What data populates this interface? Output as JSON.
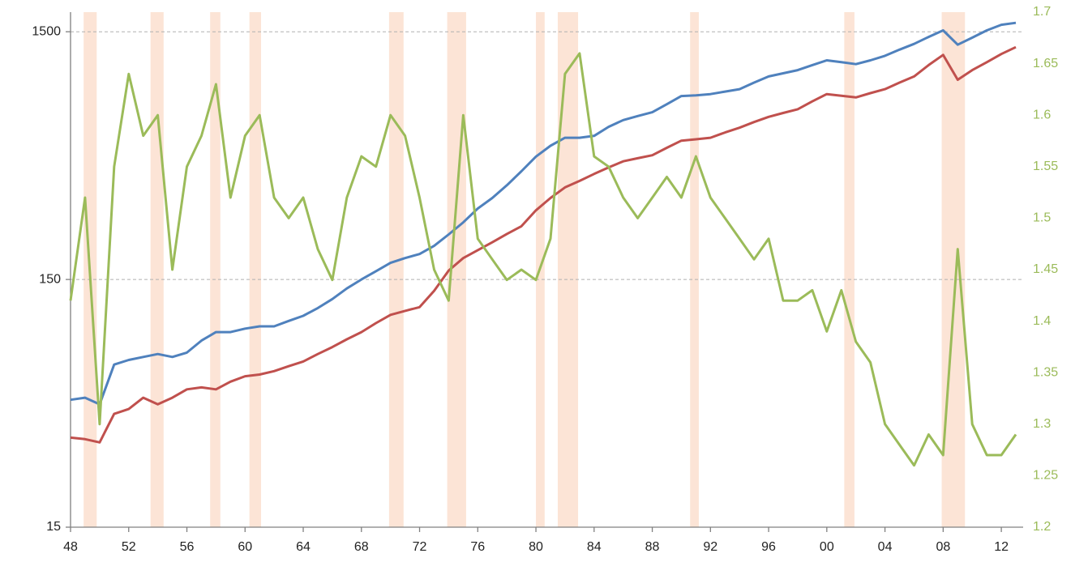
{
  "chart_data": {
    "type": "line",
    "x": [
      1948,
      1949,
      1950,
      1951,
      1952,
      1953,
      1954,
      1955,
      1956,
      1957,
      1958,
      1959,
      1960,
      1961,
      1962,
      1963,
      1964,
      1965,
      1966,
      1967,
      1968,
      1969,
      1970,
      1971,
      1972,
      1973,
      1974,
      1975,
      1976,
      1977,
      1978,
      1979,
      1980,
      1981,
      1982,
      1983,
      1984,
      1985,
      1986,
      1987,
      1988,
      1989,
      1990,
      1991,
      1992,
      1993,
      1994,
      1995,
      1996,
      1997,
      1998,
      1999,
      2000,
      2001,
      2002,
      2003,
      2004,
      2005,
      2006,
      2007,
      2008,
      2009,
      2010,
      2011,
      2012,
      2013
    ],
    "series": [
      {
        "color": "#4f81bd",
        "values": [
          49,
          50,
          47,
          68,
          71,
          73,
          75,
          73,
          76,
          85,
          92,
          92,
          95,
          97,
          97,
          102,
          107,
          115,
          125,
          138,
          150,
          162,
          175,
          183,
          190,
          205,
          228,
          255,
          290,
          320,
          360,
          410,
          470,
          520,
          560,
          560,
          570,
          620,
          660,
          685,
          710,
          765,
          825,
          830,
          840,
          860,
          880,
          935,
          990,
          1020,
          1050,
          1100,
          1150,
          1130,
          1110,
          1150,
          1200,
          1270,
          1340,
          1430,
          1520,
          1330,
          1420,
          1520,
          1600,
          1630
        ]
      },
      {
        "color": "#c0504d",
        "values": [
          34.5,
          34,
          33,
          43,
          45,
          50,
          47,
          50,
          54,
          55,
          54,
          58,
          61,
          62,
          64,
          67,
          70,
          75,
          80,
          86,
          92,
          100,
          108,
          112,
          116,
          135,
          163,
          183,
          197,
          212,
          229,
          246,
          285,
          320,
          353,
          375,
          400,
          425,
          450,
          463,
          476,
          510,
          545,
          552,
          560,
          588,
          615,
          648,
          680,
          705,
          730,
          785,
          840,
          828,
          815,
          848,
          880,
          935,
          990,
          1100,
          1210,
          960,
          1050,
          1130,
          1220,
          1300
        ]
      },
      {
        "color": "#9bbb59",
        "axis": "y2",
        "values": [
          1.42,
          1.52,
          1.3,
          1.55,
          1.64,
          1.58,
          1.6,
          1.45,
          1.55,
          1.58,
          1.63,
          1.52,
          1.58,
          1.6,
          1.52,
          1.5,
          1.52,
          1.47,
          1.44,
          1.52,
          1.56,
          1.55,
          1.6,
          1.58,
          1.52,
          1.45,
          1.42,
          1.6,
          1.48,
          1.46,
          1.44,
          1.45,
          1.44,
          1.48,
          1.64,
          1.66,
          1.56,
          1.55,
          1.52,
          1.5,
          1.52,
          1.54,
          1.52,
          1.56,
          1.52,
          1.5,
          1.48,
          1.46,
          1.48,
          1.42,
          1.42,
          1.43,
          1.39,
          1.43,
          1.38,
          1.36,
          1.3,
          1.28,
          1.26,
          1.29,
          1.27,
          1.47,
          1.3,
          1.27,
          1.27,
          1.29
        ]
      }
    ],
    "shaded_ranges": [
      [
        1948.9,
        1949.8
      ],
      [
        1953.5,
        1954.4
      ],
      [
        1957.6,
        1958.3
      ],
      [
        1960.3,
        1961.1
      ],
      [
        1969.9,
        1970.9
      ],
      [
        1973.9,
        1975.2
      ],
      [
        1980.0,
        1980.6
      ],
      [
        1981.5,
        1982.9
      ],
      [
        1990.6,
        1991.2
      ],
      [
        2001.2,
        2001.9
      ],
      [
        2007.9,
        2009.5
      ]
    ],
    "shade_color": "#fce4d6",
    "xlim": [
      1948,
      2013.5
    ],
    "xticks": [
      {
        "value": 1948,
        "label": "48"
      },
      {
        "value": 1952,
        "label": "52"
      },
      {
        "value": 1956,
        "label": "56"
      },
      {
        "value": 1960,
        "label": "60"
      },
      {
        "value": 1964,
        "label": "64"
      },
      {
        "value": 1968,
        "label": "68"
      },
      {
        "value": 1972,
        "label": "72"
      },
      {
        "value": 1976,
        "label": "76"
      },
      {
        "value": 1980,
        "label": "80"
      },
      {
        "value": 1984,
        "label": "84"
      },
      {
        "value": 1988,
        "label": "88"
      },
      {
        "value": 1992,
        "label": "92"
      },
      {
        "value": 1996,
        "label": "96"
      },
      {
        "value": 2000,
        "label": "00"
      },
      {
        "value": 2004,
        "label": "04"
      },
      {
        "value": 2008,
        "label": "08"
      },
      {
        "value": 2012,
        "label": "12"
      }
    ],
    "ylim": [
      15,
      1800
    ],
    "yticks": [
      15,
      150,
      1500
    ],
    "ylog": true,
    "y2lim": [
      1.2,
      1.7
    ],
    "y2ticks": [
      1.2,
      1.25,
      1.3,
      1.35,
      1.4,
      1.45,
      1.5,
      1.55,
      1.6,
      1.65,
      1.7
    ],
    "y2_color": "#9bbb59",
    "grid": true
  }
}
